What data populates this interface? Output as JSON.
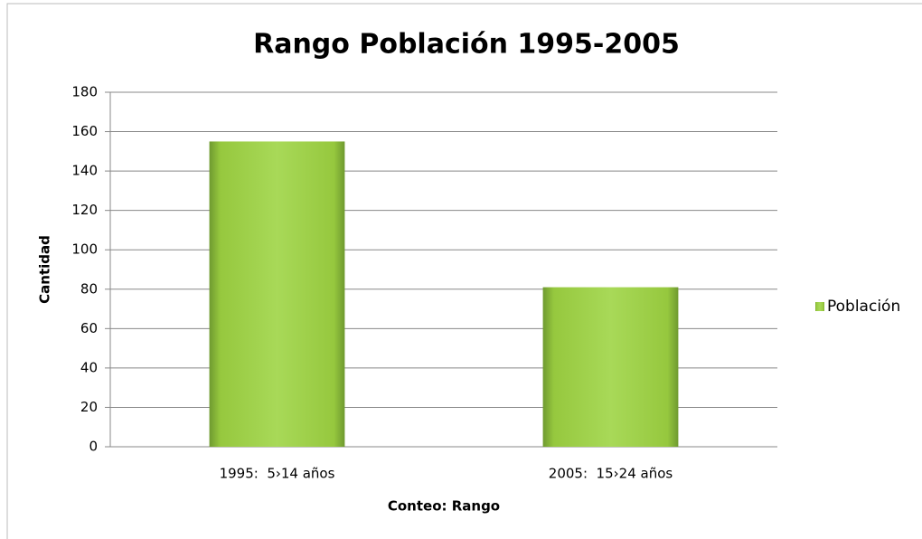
{
  "chart_data": {
    "type": "bar",
    "title": "Rango Población 1995-2005",
    "categories": [
      "1995:  5›14 años",
      "2005:  15›24 años"
    ],
    "series": [
      {
        "name": "Población",
        "color": "#96c83e",
        "values": [
          155,
          81
        ]
      }
    ],
    "xlabel": "Conteo: Rango",
    "ylabel": "Cantidad",
    "ylim": [
      0,
      180
    ],
    "yticks": [
      0,
      20,
      40,
      60,
      80,
      100,
      120,
      140,
      160,
      180
    ],
    "grid": true,
    "legend": "right"
  }
}
